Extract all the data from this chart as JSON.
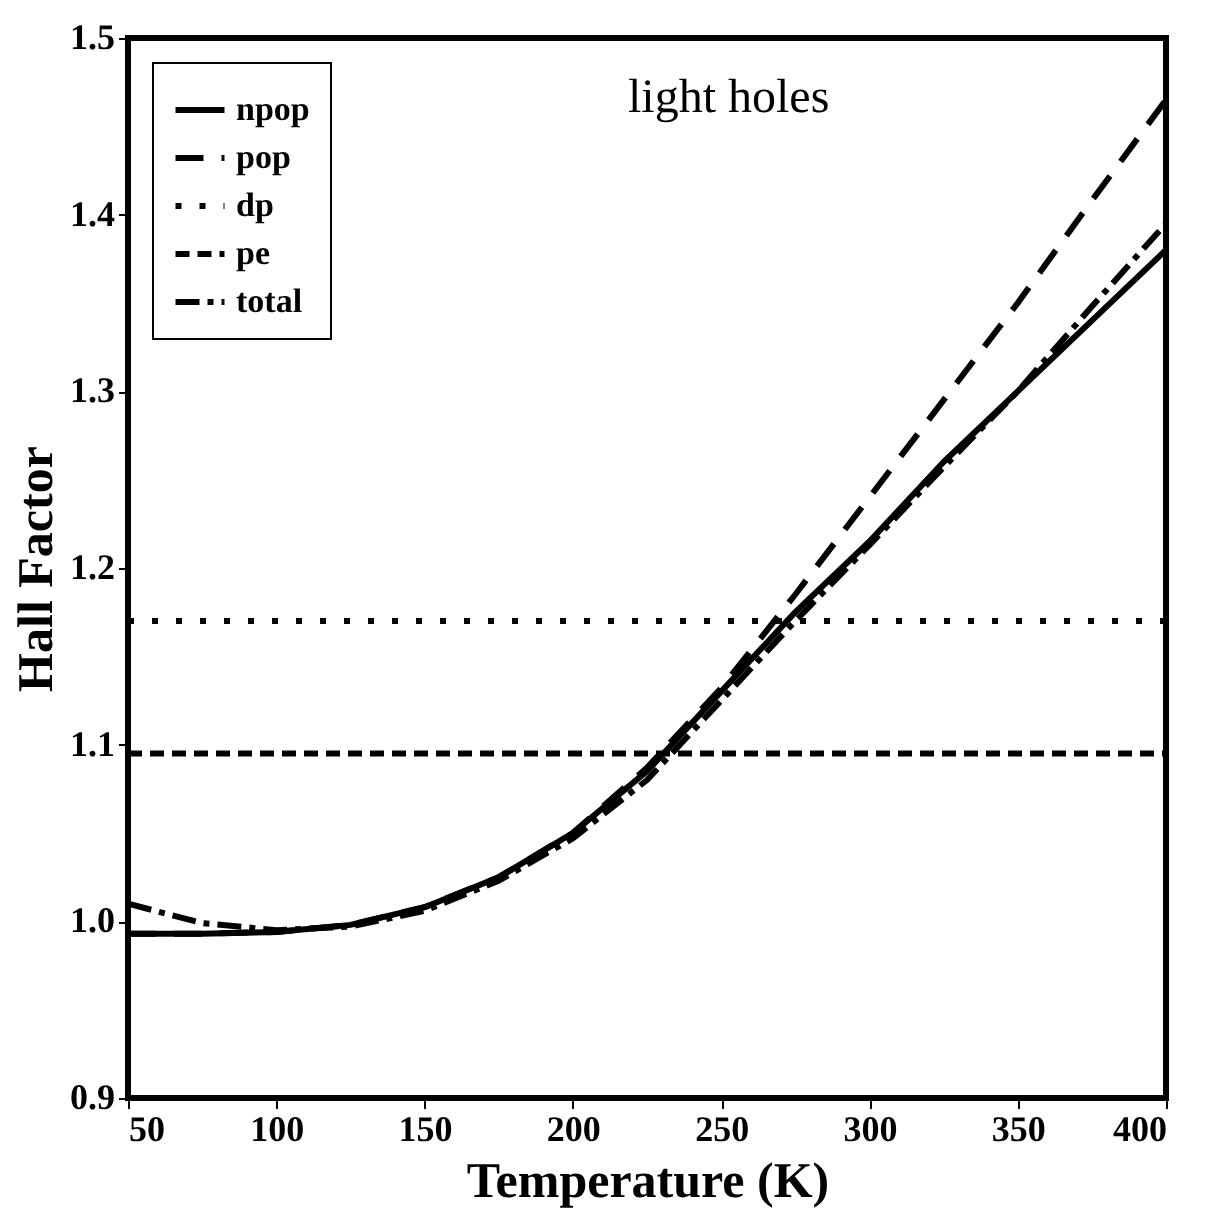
{
  "chart_data": {
    "type": "line",
    "xlabel": "Temperature (K)",
    "ylabel": "Hall Factor",
    "annotations": [
      "light holes"
    ],
    "xlim": [
      50,
      400
    ],
    "ylim": [
      0.9,
      1.5
    ],
    "xticks": [
      50,
      100,
      150,
      200,
      250,
      300,
      350,
      400
    ],
    "yticks": [
      0.9,
      {
        "value": 1,
        "label": "1.0"
      },
      1.1,
      1.2,
      1.3,
      1.4,
      1.5
    ],
    "grid": false,
    "legend": "top left",
    "marker": "none",
    "series": [
      {
        "name": "npop",
        "color": "#000000",
        "line_style": "solid",
        "x": [
          50,
          75,
          100,
          125,
          150,
          175,
          200,
          225,
          250,
          275,
          300,
          325,
          350,
          375,
          400
        ],
        "values": [
          0.993,
          0.993,
          0.994,
          0.998,
          1.008,
          1.025,
          1.05,
          1.085,
          1.13,
          1.175,
          1.215,
          1.26,
          1.3,
          1.34,
          1.38
        ]
      },
      {
        "name": "pop",
        "color": "#000000",
        "line_style": "dashed",
        "x": [
          50,
          75,
          100,
          125,
          150,
          175,
          200,
          225,
          250,
          275,
          300,
          325,
          350,
          375,
          400
        ],
        "values": [
          0.993,
          0.993,
          0.994,
          0.998,
          1.008,
          1.025,
          1.05,
          1.087,
          1.132,
          1.185,
          1.24,
          1.295,
          1.35,
          1.408,
          1.465
        ]
      },
      {
        "name": "dp",
        "color": "#000000",
        "line_style": "dotted",
        "x": [
          50,
          400
        ],
        "values": [
          1.17,
          1.17
        ]
      },
      {
        "name": "pe",
        "color": "#000000",
        "line_style": "densedash",
        "x": [
          50,
          400
        ],
        "values": [
          1.095,
          1.095
        ]
      },
      {
        "name": "total",
        "color": "#000000",
        "line_style": "dashdot",
        "x": [
          50,
          75,
          100,
          125,
          150,
          175,
          200,
          225,
          250,
          275,
          300,
          325,
          350,
          375,
          400
        ],
        "values": [
          1.01,
          0.999,
          0.995,
          0.997,
          1.006,
          1.023,
          1.047,
          1.08,
          1.125,
          1.17,
          1.213,
          1.257,
          1.3,
          1.348,
          1.395
        ]
      }
    ]
  }
}
